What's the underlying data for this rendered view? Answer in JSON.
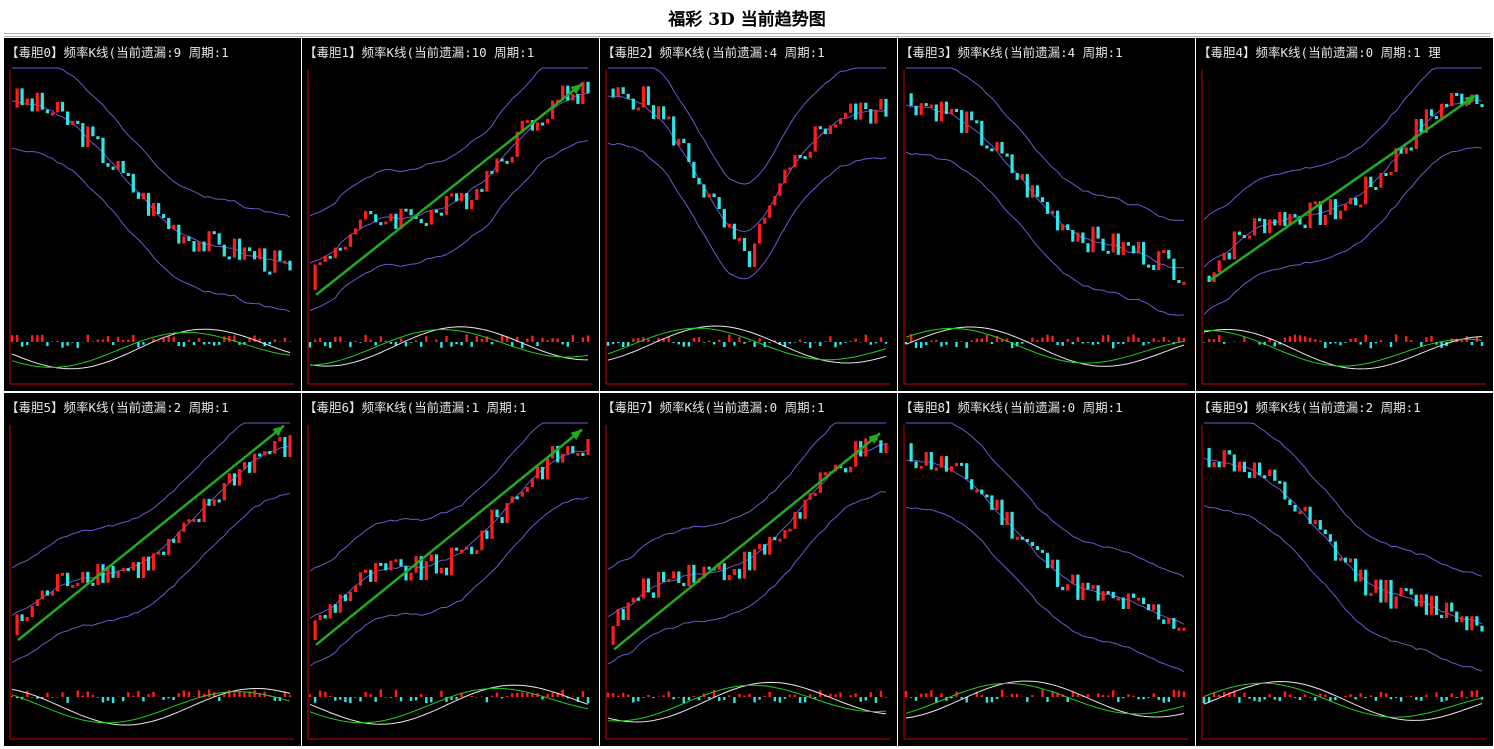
{
  "page": {
    "title": "福彩 3D 当前趋势图"
  },
  "colors": {
    "background": "#000000",
    "axis": "#cc0000",
    "up_candle": "#ff1c1c",
    "down_candle": "#2ee6e6",
    "band_line": "#6a5acd",
    "macd_fast": "#e8e8e8",
    "macd_slow": "#22cc22",
    "trend_arrow": "#22aa22"
  },
  "panels": [
    {
      "label": "【毒胆0】频率K线(当前遗漏:9 周期:1",
      "trend": "down",
      "arrow": false
    },
    {
      "label": "【毒胆1】频率K线(当前遗漏:10 周期:1",
      "trend": "up",
      "arrow": true
    },
    {
      "label": "【毒胆2】频率K线(当前遗漏:4 周期:1",
      "trend": "v",
      "arrow": false
    },
    {
      "label": "【毒胆3】频率K线(当前遗漏:4 周期:1",
      "trend": "down",
      "arrow": false
    },
    {
      "label": "【毒胆4】频率K线(当前遗漏:0 周期:1 理",
      "trend": "up",
      "arrow": true
    },
    {
      "label": "【毒胆5】频率K线(当前遗漏:2 周期:1",
      "trend": "up",
      "arrow": true
    },
    {
      "label": "【毒胆6】频率K线(当前遗漏:1 周期:1",
      "trend": "up",
      "arrow": true
    },
    {
      "label": "【毒胆7】频率K线(当前遗漏:0 周期:1",
      "trend": "up",
      "arrow": true
    },
    {
      "label": "【毒胆8】频率K线(当前遗漏:0 周期:1",
      "trend": "down",
      "arrow": false
    },
    {
      "label": "【毒胆9】频率K线(当前遗漏:2 周期:1",
      "trend": "down",
      "arrow": false
    }
  ],
  "chart_data": [
    {
      "type": "candlestick",
      "title": "【毒胆0】频率K线(当前遗漏:9 周期:1"
    },
    {
      "type": "candlestick",
      "title": "【毒胆1】频率K线(当前遗漏:10 周期:1"
    },
    {
      "type": "candlestick",
      "title": "【毒胆2】频率K线(当前遗漏:4 周期:1"
    },
    {
      "type": "candlestick",
      "title": "【毒胆3】频率K线(当前遗漏:4 周期:1"
    },
    {
      "type": "candlestick",
      "title": "【毒胆4】频率K线(当前遗漏:0 周期:1 理"
    },
    {
      "type": "candlestick",
      "title": "【毒胆5】频率K线(当前遗漏:2 周期:1"
    },
    {
      "type": "candlestick",
      "title": "【毒胆6】频率K线(当前遗漏:1 周期:1"
    },
    {
      "type": "candlestick",
      "title": "【毒胆7】频率K线(当前遗漏:0 周期:1"
    },
    {
      "type": "candlestick",
      "title": "【毒胆8】频率K线(当前遗漏:0 周期:1"
    },
    {
      "type": "candlestick",
      "title": "【毒胆9】频率K线(当前遗漏:2 周期:1"
    }
  ]
}
